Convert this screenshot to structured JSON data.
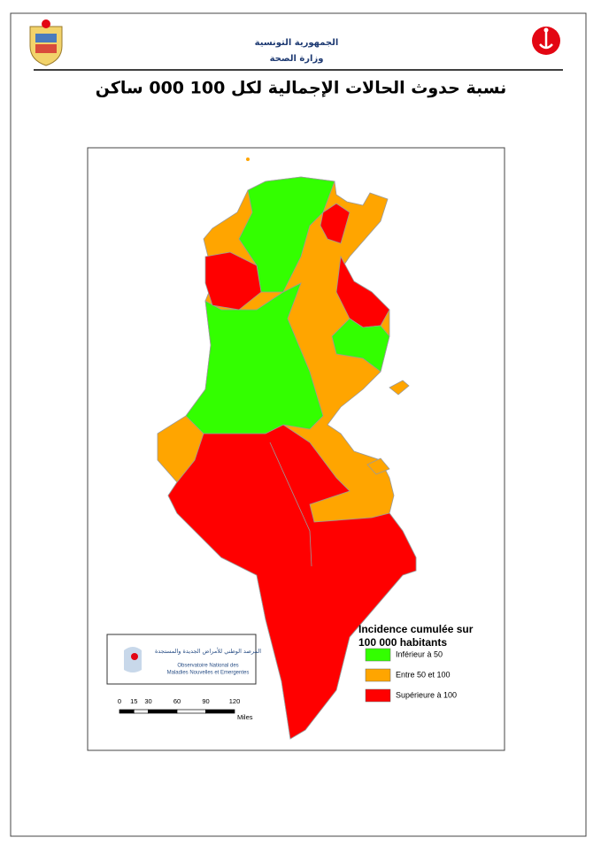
{
  "header": {
    "line1": "الجمهورية التونسية",
    "line2": "وزارة الصحة"
  },
  "title": "نسبة حدوث الحالات الإجمالية لكل 100 000 ساكن",
  "legend": {
    "title_line1": "Incidence cumulée sur",
    "title_line2": "100 000 habitants",
    "items": [
      {
        "label": "Inférieur à 50",
        "color": "#33ff00"
      },
      {
        "label": "Entre 50 et 100",
        "color": "#ffa500"
      },
      {
        "label": "Supérieure à 100",
        "color": "#ff0000"
      }
    ]
  },
  "logo": {
    "arabic": "المرصد الوطني للأمراض الجديدة والمستجدة",
    "french_line1": "Observatoire National des",
    "french_line2": "Maladies Nouvelles et Emergentes"
  },
  "scale": {
    "ticks": [
      0,
      15,
      30,
      60,
      90,
      120
    ],
    "unit": "Miles"
  }
}
